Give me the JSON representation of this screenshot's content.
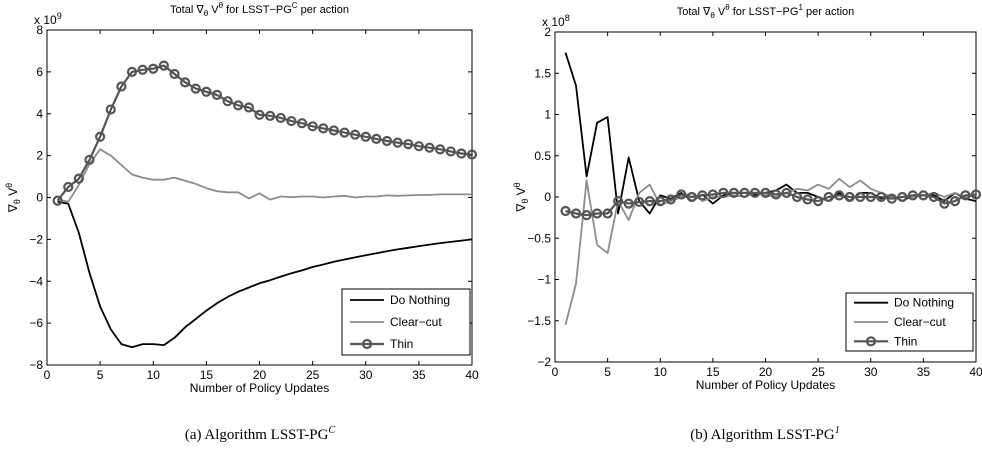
{
  "chart_data": [
    {
      "type": "line",
      "title": "Total ∇θ Vθ for LSST−PGC per action",
      "title_main": "Total ∇",
      "title_sub": "θ",
      "title_v": " V",
      "title_sup": "θ",
      "title_rest": " for LSST−PG",
      "title_rest_sup": "C",
      "title_end": " per action",
      "xlabel": "Number of Policy Updates",
      "ylabel_main": "∇",
      "ylabel_sub": "θ",
      "ylabel_v": " V",
      "ylabel_sup": "θ",
      "multiplier": "x 10",
      "multiplier_exp": "9",
      "xlim": [
        0,
        40
      ],
      "ylim": [
        -8,
        8
      ],
      "xticks": [
        0,
        5,
        10,
        15,
        20,
        25,
        30,
        35,
        40
      ],
      "yticks": [
        -8,
        -6,
        -4,
        -2,
        0,
        2,
        4,
        6,
        8
      ],
      "grid": false,
      "legend_position": "bottom-right",
      "caption_main": "(a) Algorithm LSST-PG",
      "caption_sup": "C",
      "x": [
        1,
        2,
        3,
        4,
        5,
        6,
        7,
        8,
        9,
        10,
        11,
        12,
        13,
        14,
        15,
        16,
        17,
        18,
        19,
        20,
        21,
        22,
        23,
        24,
        25,
        26,
        27,
        28,
        29,
        30,
        31,
        32,
        33,
        34,
        35,
        36,
        37,
        38,
        39,
        40
      ],
      "series": [
        {
          "name": "Do Nothing",
          "color": "#000000",
          "marker": "none",
          "values": [
            -0.2,
            -0.3,
            -1.7,
            -3.6,
            -5.2,
            -6.3,
            -7.0,
            -7.15,
            -7.0,
            -7.0,
            -7.05,
            -6.7,
            -6.2,
            -5.8,
            -5.4,
            -5.05,
            -4.75,
            -4.5,
            -4.3,
            -4.1,
            -3.95,
            -3.78,
            -3.62,
            -3.48,
            -3.32,
            -3.2,
            -3.07,
            -2.96,
            -2.86,
            -2.76,
            -2.66,
            -2.57,
            -2.48,
            -2.4,
            -2.32,
            -2.25,
            -2.18,
            -2.12,
            -2.06,
            -2.0
          ]
        },
        {
          "name": "Clear−cut",
          "color": "#8c8c8c",
          "marker": "none",
          "values": [
            -0.1,
            -0.2,
            0.6,
            1.6,
            2.3,
            2.0,
            1.55,
            1.1,
            0.95,
            0.85,
            0.85,
            0.95,
            0.8,
            0.65,
            0.45,
            0.3,
            0.25,
            0.25,
            -0.05,
            0.2,
            -0.1,
            0.05,
            0.02,
            0.05,
            0.05,
            0.0,
            0.05,
            0.08,
            0.0,
            0.05,
            0.05,
            0.1,
            0.08,
            0.1,
            0.12,
            0.12,
            0.15,
            0.15,
            0.15,
            0.15
          ]
        },
        {
          "name": "Thin",
          "color": "#555555",
          "marker": "circle",
          "values": [
            -0.15,
            0.5,
            0.9,
            1.8,
            2.9,
            4.2,
            5.3,
            6.0,
            6.1,
            6.15,
            6.3,
            5.9,
            5.5,
            5.2,
            5.05,
            4.9,
            4.6,
            4.4,
            4.3,
            3.95,
            3.9,
            3.8,
            3.65,
            3.55,
            3.4,
            3.3,
            3.2,
            3.1,
            3.0,
            2.9,
            2.8,
            2.7,
            2.62,
            2.55,
            2.45,
            2.38,
            2.3,
            2.2,
            2.1,
            2.05
          ]
        }
      ]
    },
    {
      "type": "line",
      "title": "Total ∇θ Vθ for LSST−PG1 per action",
      "title_main": "Total ∇",
      "title_sub": "θ",
      "title_v": " V",
      "title_sup": "θ",
      "title_rest": " for LSST−PG",
      "title_rest_sup": "1",
      "title_end": " per action",
      "xlabel": "Number of Policy Updates",
      "ylabel_main": "∇",
      "ylabel_sub": "θ",
      "ylabel_v": " V",
      "ylabel_sup": "θ",
      "multiplier": "x 10",
      "multiplier_exp": "8",
      "xlim": [
        0,
        40
      ],
      "ylim": [
        -2,
        2
      ],
      "xticks": [
        0,
        5,
        10,
        15,
        20,
        25,
        30,
        35,
        40
      ],
      "yticks": [
        -2,
        -1.5,
        -1,
        -0.5,
        0,
        0.5,
        1,
        1.5,
        2
      ],
      "grid": false,
      "legend_position": "bottom-right",
      "caption_main": "(b) Algorithm LSST-PG",
      "caption_sup": "1",
      "x": [
        1,
        2,
        3,
        4,
        5,
        6,
        7,
        8,
        9,
        10,
        11,
        12,
        13,
        14,
        15,
        16,
        17,
        18,
        19,
        20,
        21,
        22,
        23,
        24,
        25,
        26,
        27,
        28,
        29,
        30,
        31,
        32,
        33,
        34,
        35,
        36,
        37,
        38,
        39,
        40
      ],
      "series": [
        {
          "name": "Do Nothing",
          "color": "#000000",
          "marker": "none",
          "values": [
            1.75,
            1.35,
            0.25,
            0.9,
            0.97,
            -0.2,
            0.48,
            -0.05,
            -0.2,
            0.02,
            -0.02,
            0.05,
            -0.05,
            0.03,
            -0.08,
            0.02,
            0.05,
            0.05,
            0.02,
            0.05,
            0.08,
            0.15,
            0.05,
            0.05,
            0.0,
            -0.05,
            0.05,
            -0.05,
            0.05,
            0.05,
            -0.02,
            0.02,
            -0.05,
            0.02,
            0.02,
            0.02,
            -0.05,
            0.05,
            -0.02,
            -0.05
          ]
        },
        {
          "name": "Clear−cut",
          "color": "#8c8c8c",
          "marker": "none",
          "values": [
            -1.55,
            -1.05,
            0.2,
            -0.58,
            -0.68,
            -0.05,
            -0.28,
            0.05,
            0.15,
            -0.1,
            -0.05,
            0.0,
            0.05,
            -0.05,
            0.0,
            0.0,
            0.02,
            0.0,
            0.05,
            0.02,
            0.0,
            0.05,
            0.1,
            0.08,
            0.15,
            0.1,
            0.22,
            0.12,
            0.2,
            0.1,
            0.05,
            0.0,
            0.0,
            0.0,
            0.02,
            0.05,
            0.0,
            0.05,
            0.0,
            0.02
          ]
        },
        {
          "name": "Thin",
          "color": "#555555",
          "marker": "circle",
          "values": [
            -0.17,
            -0.2,
            -0.22,
            -0.2,
            -0.2,
            -0.05,
            -0.08,
            -0.06,
            -0.05,
            -0.05,
            -0.03,
            0.03,
            0.0,
            0.02,
            0.03,
            0.05,
            0.05,
            0.05,
            0.05,
            0.05,
            0.03,
            0.05,
            0.0,
            -0.03,
            -0.05,
            0.0,
            0.02,
            0.0,
            0.0,
            0.0,
            0.0,
            -0.02,
            0.0,
            0.02,
            0.02,
            0.0,
            -0.08,
            -0.05,
            0.02,
            0.03
          ]
        }
      ]
    }
  ]
}
